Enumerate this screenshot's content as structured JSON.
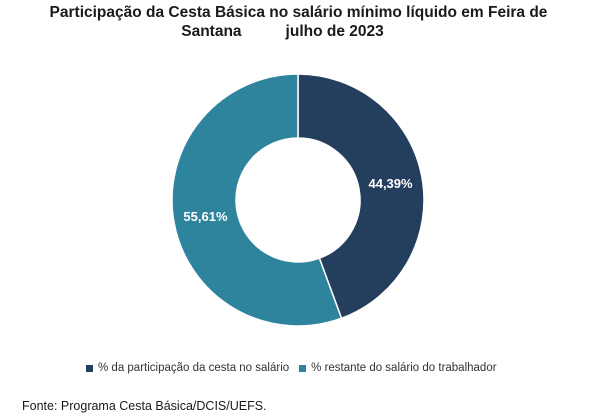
{
  "chart_data": {
    "type": "pie",
    "donut": true,
    "title_line1": "Participação da Cesta Básica no salário mínimo líquido em Feira de",
    "title_line2_a": "Santana",
    "title_line2_b": "julho de 2023",
    "slices": [
      {
        "label": "% da participação da cesta no salário",
        "value": 44.39,
        "display": "44,39%",
        "color": "#243f5e"
      },
      {
        "label": "% restante do salário do trabalhador",
        "value": 55.61,
        "display": "55,61%",
        "color": "#2f849d"
      }
    ],
    "legend_position": "bottom"
  },
  "source": "Fonte: Programa Cesta Básica/DCIS/UEFS."
}
